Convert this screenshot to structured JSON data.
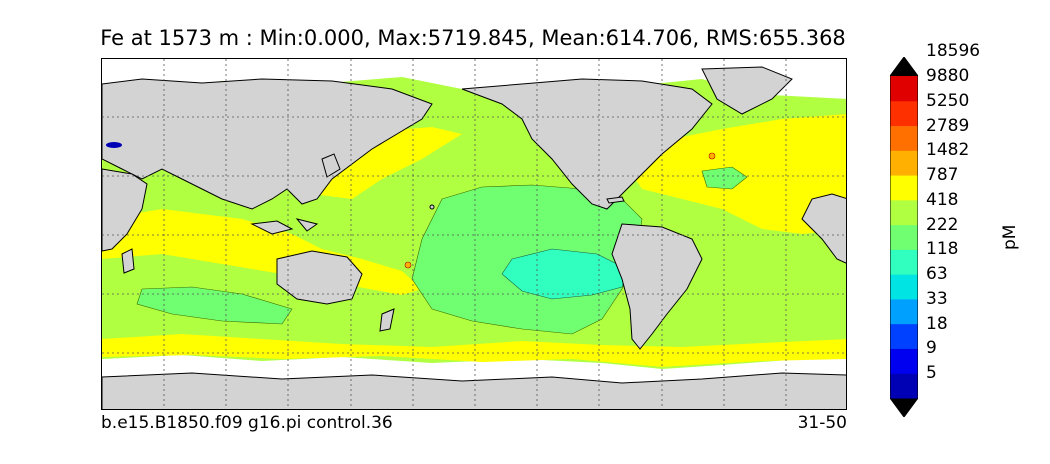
{
  "title": "Fe at 1573 m : Min:0.000, Max:5719.845, Mean:614.706, RMS:655.368",
  "footer_left": "b.e15.B1850.f09 g16.pi control.36",
  "footer_right": "31-50",
  "colorbar": {
    "units": "pM",
    "levels": [
      "5",
      "9",
      "18",
      "33",
      "63",
      "118",
      "222",
      "418",
      "787",
      "1482",
      "2789",
      "5250",
      "9880",
      "18596"
    ],
    "colors": [
      "#000080",
      "#0000b4",
      "#0000f0",
      "#0040ff",
      "#00a0ff",
      "#00e4e4",
      "#30ffc0",
      "#70ff70",
      "#b0ff40",
      "#ffff00",
      "#ffb000",
      "#ff7000",
      "#ff3000",
      "#e00000",
      "#800000"
    ],
    "extend": "both"
  },
  "map_colors": {
    "land": "#d3d3d3",
    "missing": "#ffffff",
    "level_787": "#ffff00",
    "level_418": "#b0ff40",
    "level_222": "#70ff70",
    "level_118": "#30ffc0"
  },
  "grid": {
    "style": "dotted",
    "visible": true
  }
}
